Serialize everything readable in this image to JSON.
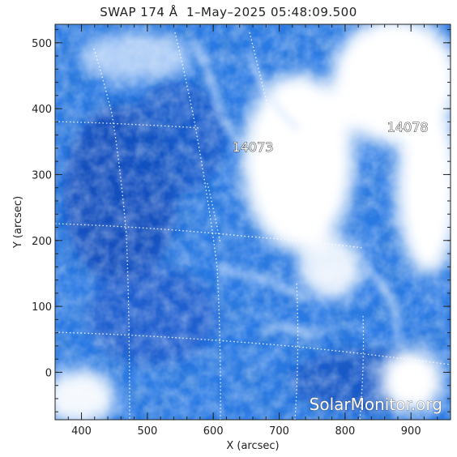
{
  "title": "SWAP 174 Å  1–May–2025 05:48:09.500",
  "axes": {
    "xlabel": "X (arcsec)",
    "ylabel": "Y (arcsec)",
    "xlim": [
      360,
      960
    ],
    "ylim": [
      -72,
      528
    ],
    "xticks": [
      400,
      500,
      600,
      700,
      800,
      900
    ],
    "yticks": [
      0,
      100,
      200,
      300,
      400,
      500
    ]
  },
  "active_regions": [
    {
      "label": "14073",
      "x": 660,
      "y": 335
    },
    {
      "label": "14078",
      "x": 895,
      "y": 365
    }
  ],
  "watermark": "SolarMonitor.org",
  "colors": {
    "background": "#1f6fe0",
    "dark": "#0b3fa8",
    "bright": "#ffffff",
    "grid": "#ffffff"
  }
}
